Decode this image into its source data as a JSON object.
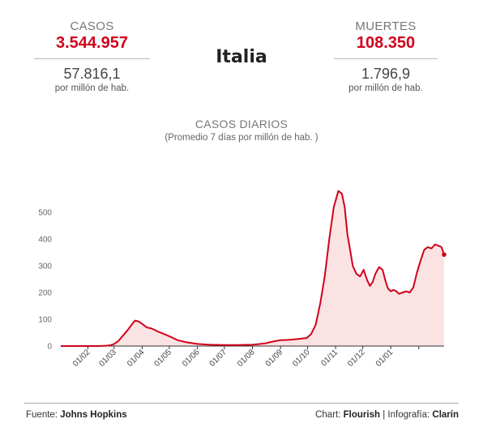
{
  "stats": {
    "cases": {
      "label": "CASOS",
      "total": "3.544.957",
      "per_million": "57.816,1",
      "unit": "por millón de hab."
    },
    "deaths": {
      "label": "MUERTES",
      "total": "108.350",
      "per_million": "1.796,9",
      "unit": "por millón de hab."
    }
  },
  "country": "Italia",
  "footer": {
    "source_prefix": "Fuente:",
    "source": "Johns Hopkins",
    "chart_prefix": "Chart:",
    "chart_tool": "Flourish",
    "separator": "|",
    "infographic_prefix": "Infografía:",
    "infographic_by": "Clarín"
  },
  "colors": {
    "accent": "#d0021b",
    "area_fill": "#fbe3e3"
  },
  "chart_data": {
    "type": "area",
    "title": "CASOS DIARIOS",
    "subtitle": "(Promedio 7 días por millón de hab. )",
    "ylim": [
      0,
      600
    ],
    "yticks": [
      0,
      100,
      200,
      300,
      400,
      500
    ],
    "xlim": [
      "2020-01-02",
      "2021-03-01"
    ],
    "xticks": [
      "01/02",
      "01/03",
      "01/04",
      "01/05",
      "01/06",
      "01/07",
      "01/08",
      "01/09",
      "01/10",
      "01/11",
      "01/12",
      "01/01"
    ],
    "grid": false,
    "series": [
      {
        "x": [
          "2020-01-22",
          "2020-02-10",
          "2020-02-20",
          "2020-02-26",
          "2020-03-01",
          "2020-03-06",
          "2020-03-11",
          "2020-03-16",
          "2020-03-21",
          "2020-03-24",
          "2020-03-28",
          "2020-04-01",
          "2020-04-06",
          "2020-04-12",
          "2020-04-18",
          "2020-04-25",
          "2020-05-02",
          "2020-05-10",
          "2020-05-20",
          "2020-06-01",
          "2020-06-15",
          "2020-07-01",
          "2020-07-15",
          "2020-08-01",
          "2020-08-15",
          "2020-08-25",
          "2020-09-01",
          "2020-09-10",
          "2020-09-20",
          "2020-09-30",
          "2020-10-05",
          "2020-10-10",
          "2020-10-15",
          "2020-10-20",
          "2020-10-25",
          "2020-10-30",
          "2020-11-04",
          "2020-11-08",
          "2020-11-11",
          "2020-11-14",
          "2020-11-17",
          "2020-11-20",
          "2020-11-24",
          "2020-11-28",
          "2020-12-02",
          "2020-12-06",
          "2020-12-09",
          "2020-12-12",
          "2020-12-15",
          "2020-12-19",
          "2020-12-23",
          "2020-12-26",
          "2020-12-29",
          "2021-01-01",
          "2021-01-04",
          "2021-01-07",
          "2021-01-10",
          "2021-01-14",
          "2021-01-18",
          "2021-01-22",
          "2021-01-26",
          "2021-01-30",
          "2021-02-03",
          "2021-02-07",
          "2021-02-11",
          "2021-02-15",
          "2021-02-19",
          "2021-02-23",
          "2021-02-26",
          "2021-03-01"
        ],
        "values": [
          0,
          0,
          1,
          3,
          8,
          20,
          40,
          60,
          82,
          95,
          92,
          83,
          70,
          65,
          55,
          45,
          35,
          22,
          14,
          8,
          5,
          4,
          4,
          5,
          10,
          18,
          22,
          23,
          26,
          30,
          45,
          80,
          160,
          260,
          400,
          520,
          580,
          570,
          520,
          420,
          360,
          300,
          270,
          260,
          285,
          245,
          225,
          240,
          270,
          295,
          285,
          245,
          215,
          205,
          210,
          205,
          195,
          200,
          205,
          200,
          220,
          275,
          320,
          360,
          370,
          365,
          380,
          375,
          370,
          342
        ]
      }
    ]
  }
}
